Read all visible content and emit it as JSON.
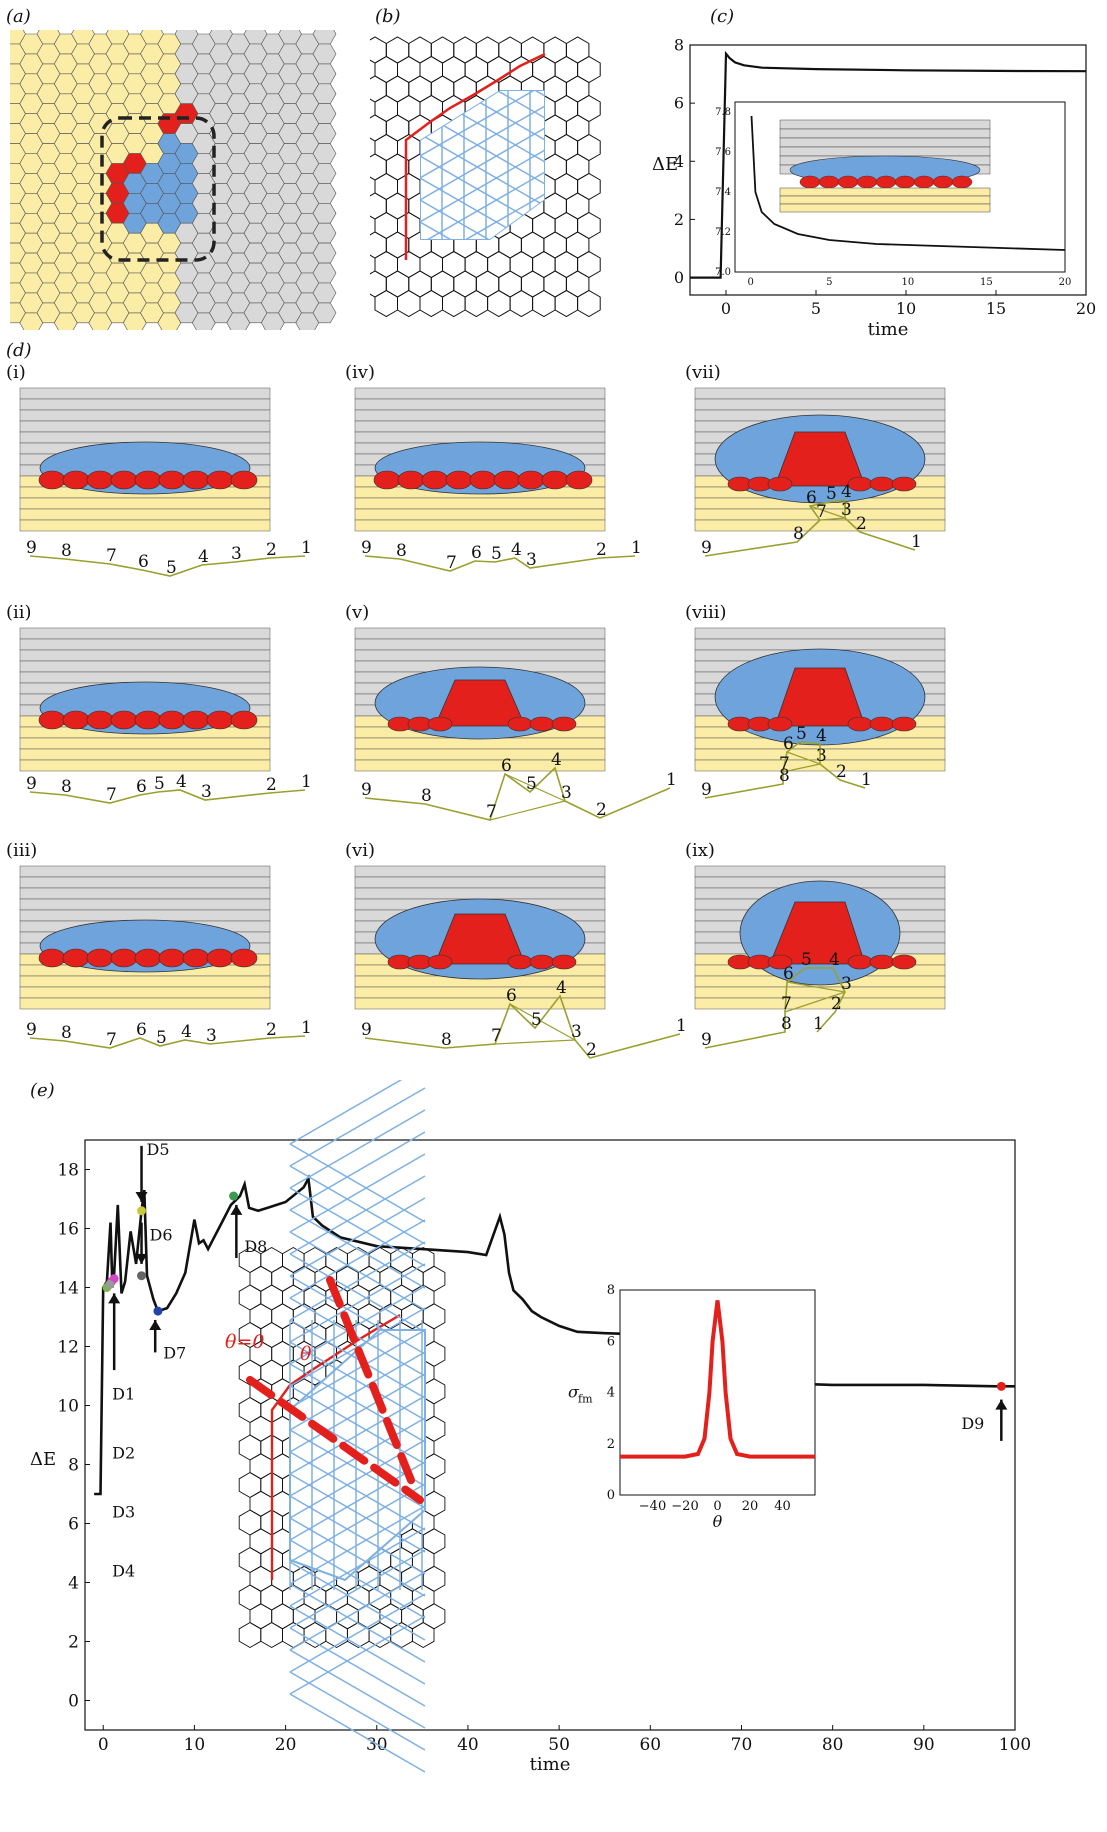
{
  "panels": {
    "a": "(a)",
    "b": "(b)",
    "c": "(c)",
    "d": "(d)",
    "e": "(e)"
  },
  "colors": {
    "yellow": "#fbeca6",
    "grey": "#d9d9d9",
    "blue": "#6fa3dc",
    "red": "#e3201b",
    "olive": "#9aa02e",
    "lightblue": "#7fb0e3"
  },
  "subpanels": [
    {
      "roman": "(i)",
      "chain": [
        "9",
        "8",
        "7",
        "6",
        "5",
        "4",
        "3",
        "2",
        "1"
      ]
    },
    {
      "roman": "(ii)",
      "chain": [
        "9",
        "8",
        "7",
        "6",
        "5",
        "4",
        "3",
        "2",
        "1"
      ]
    },
    {
      "roman": "(iii)",
      "chain": [
        "9",
        "8",
        "7",
        "6",
        "5",
        "4",
        "3",
        "2",
        "1"
      ]
    },
    {
      "roman": "(iv)",
      "chain": [
        "9",
        "8",
        "7",
        "6",
        "5",
        "4",
        "3",
        "2",
        "1"
      ]
    },
    {
      "roman": "(v)",
      "chain": [
        "9",
        "8",
        "7",
        "6",
        "5",
        "4",
        "3",
        "2",
        "1"
      ]
    },
    {
      "roman": "(vi)",
      "chain": [
        "9",
        "8",
        "7",
        "6",
        "5",
        "4",
        "3",
        "2",
        "1"
      ]
    },
    {
      "roman": "(vii)",
      "chain": [
        "9",
        "8",
        "7",
        "6",
        "5",
        "4",
        "3",
        "2",
        "1"
      ]
    },
    {
      "roman": "(viii)",
      "chain": [
        "9",
        "8",
        "7",
        "6",
        "5",
        "4",
        "3",
        "2",
        "1"
      ]
    },
    {
      "roman": "(ix)",
      "chain": [
        "9",
        "8",
        "7",
        "6",
        "5",
        "4",
        "3",
        "2",
        "1"
      ]
    }
  ],
  "chart_data": [
    {
      "type": "line",
      "panel": "(c)",
      "ylabel": "ΔE",
      "xlabel": "time",
      "xlim": [
        -2,
        20
      ],
      "ylim": [
        -0.6,
        8
      ],
      "xticks": [
        "0",
        "5",
        "10",
        "15",
        "20"
      ],
      "yticks": [
        "0",
        "2",
        "4",
        "6",
        "8"
      ],
      "x": [
        -2,
        -0.3,
        -0.3,
        0,
        0.2,
        0.5,
        1,
        2,
        5,
        10,
        15,
        20
      ],
      "y": [
        0,
        0,
        0,
        7.7,
        7.55,
        7.4,
        7.3,
        7.22,
        7.17,
        7.13,
        7.11,
        7.1
      ],
      "inset": {
        "xlim": [
          -1,
          20
        ],
        "ylim": [
          7.0,
          7.85
        ],
        "xticks": [
          "0",
          "5",
          "10",
          "15",
          "20"
        ],
        "yticks": [
          "7.0",
          "7.2",
          "7.4",
          "7.6",
          "7.8"
        ],
        "x": [
          0.05,
          0.3,
          0.7,
          1.5,
          3,
          5,
          8,
          12,
          16,
          20
        ],
        "y": [
          7.78,
          7.4,
          7.3,
          7.24,
          7.19,
          7.16,
          7.14,
          7.13,
          7.12,
          7.11
        ]
      }
    },
    {
      "type": "line",
      "panel": "(e)",
      "ylabel": "ΔE",
      "xlabel": "time",
      "xlim": [
        -2,
        100
      ],
      "ylim": [
        -1,
        19
      ],
      "xticks": [
        "0",
        "10",
        "20",
        "30",
        "40",
        "50",
        "60",
        "70",
        "80",
        "90",
        "100"
      ],
      "yticks": [
        "0",
        "2",
        "4",
        "6",
        "8",
        "10",
        "12",
        "14",
        "16",
        "18"
      ],
      "x": [
        -1,
        -0.3,
        -0.3,
        0,
        0.4,
        0.8,
        1.0,
        1.2,
        1.6,
        2.0,
        2.4,
        3,
        3.6,
        4.2,
        4.5,
        4.8,
        5.5,
        6,
        7,
        8,
        9,
        10,
        10.5,
        11,
        11.5,
        12,
        13,
        14,
        15,
        15.5,
        16,
        17,
        18,
        20,
        22,
        22.5,
        23,
        24,
        26,
        30,
        35,
        40,
        42,
        43.5,
        44,
        44.5,
        45,
        46,
        47,
        48,
        50,
        52,
        55,
        60,
        62,
        63,
        64,
        65,
        68,
        70,
        75,
        80,
        90,
        98,
        100
      ],
      "y": [
        7,
        7,
        7,
        14,
        14.2,
        16.2,
        14,
        14.5,
        16.8,
        13.8,
        14.2,
        15.9,
        14.8,
        16.6,
        17.3,
        14.4,
        13.6,
        13.2,
        13.3,
        13.8,
        14.5,
        16.3,
        15.5,
        15.6,
        15.3,
        15.6,
        16.2,
        16.8,
        17.1,
        17.5,
        16.7,
        16.6,
        16.7,
        16.9,
        17.4,
        17.7,
        16.4,
        16.1,
        15.7,
        15.4,
        15.3,
        15.2,
        15.1,
        16.4,
        15.8,
        14.5,
        13.9,
        13.6,
        13.2,
        13.0,
        12.7,
        12.5,
        12.45,
        12.4,
        12.35,
        12.1,
        11.5,
        11.1,
        10.9,
        10.8,
        10.75,
        10.7,
        10.7,
        10.65,
        10.65
      ],
      "markers": [
        {
          "label": "D1",
          "x": 0.4,
          "y": 14.0,
          "color": "#7ab648"
        },
        {
          "label": "D2",
          "x": 0.9,
          "y": 14.2,
          "color": "#e040a0"
        },
        {
          "label": "D3",
          "x": 1.2,
          "y": 14.3,
          "color": "#d048c8"
        },
        {
          "label": "D4",
          "x": 0.7,
          "y": 14.1,
          "color": "#999999"
        },
        {
          "label": "D5",
          "x": 4.2,
          "y": 16.6,
          "color": "#c8c83c"
        },
        {
          "label": "D6",
          "x": 4.2,
          "y": 14.4,
          "color": "#666666"
        },
        {
          "label": "D7",
          "x": 6.0,
          "y": 13.2,
          "color": "#2244aa"
        },
        {
          "label": "D8",
          "x": 14.3,
          "y": 17.1,
          "color": "#3a9a50"
        },
        {
          "label": "D9",
          "x": 98.5,
          "y": 10.65,
          "color": "#e3201b"
        }
      ],
      "annotations": {
        "theta0": "θ=0",
        "theta": "θ"
      },
      "inset": {
        "ylabel": "σ",
        "ylabel_sub": "fm",
        "xlabel": "θ",
        "xlim": [
          -60,
          60
        ],
        "ylim": [
          0,
          8
        ],
        "xticks": [
          "−40",
          "−20",
          "0",
          "20",
          "40"
        ],
        "yticks": [
          "0",
          "2",
          "4",
          "6",
          "8"
        ],
        "x": [
          -60,
          -20,
          -12,
          -8,
          -5,
          -3,
          0,
          3,
          5,
          8,
          12,
          20,
          60
        ],
        "y": [
          1.5,
          1.5,
          1.6,
          2.2,
          4.0,
          6.0,
          7.6,
          6.0,
          4.0,
          2.2,
          1.6,
          1.5,
          1.5
        ]
      }
    }
  ]
}
